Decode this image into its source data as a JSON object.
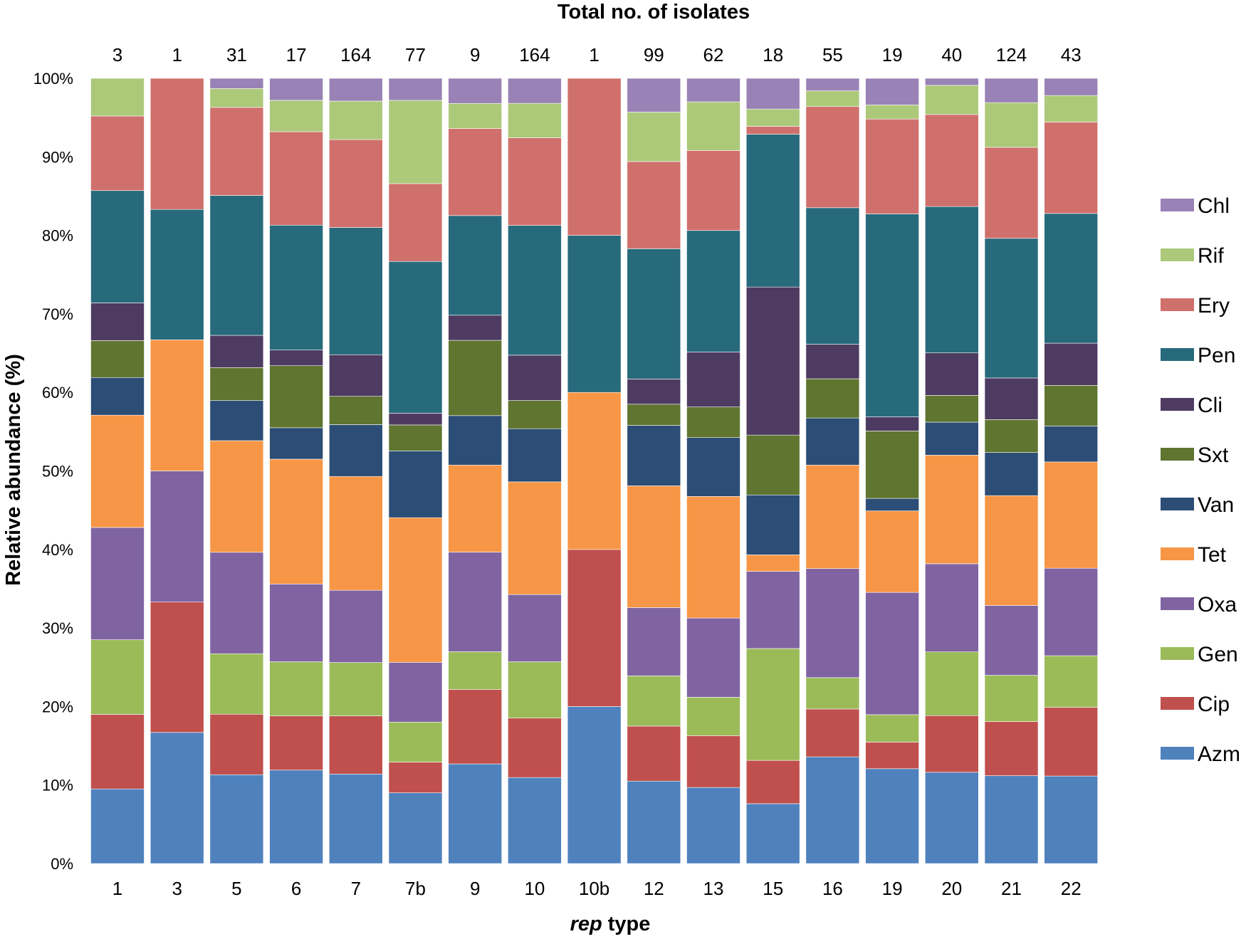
{
  "chart_data": {
    "type": "bar",
    "stacked": true,
    "normalized": true,
    "top_title": "Total no. of isolates",
    "xlabel_italic": "rep",
    "xlabel_rest": " type",
    "ylabel": "Relative abundance (%)",
    "ylim": [
      0,
      100
    ],
    "yticks": [
      "0%",
      "10%",
      "20%",
      "30%",
      "40%",
      "50%",
      "60%",
      "70%",
      "80%",
      "90%",
      "100%"
    ],
    "categories": [
      "1",
      "3",
      "5",
      "6",
      "7",
      "7b",
      "9",
      "10",
      "10b",
      "12",
      "13",
      "15",
      "16",
      "19",
      "20",
      "21",
      "22"
    ],
    "totals": [
      "3",
      "1",
      "31",
      "17",
      "164",
      "77",
      "9",
      "164",
      "1",
      "99",
      "62",
      "18",
      "55",
      "19",
      "40",
      "124",
      "43"
    ],
    "legend_position": "right",
    "series": [
      {
        "name": "Azm",
        "color": "#4f81bd",
        "values": [
          9.5,
          16.7,
          11.3,
          11.9,
          11.4,
          9.0,
          12.7,
          11.0,
          20.0,
          10.5,
          9.7,
          7.6,
          13.6,
          12.1,
          11.6,
          11.2,
          11.2
        ]
      },
      {
        "name": "Cip",
        "color": "#c0504d",
        "values": [
          9.5,
          16.6,
          7.7,
          6.9,
          7.4,
          3.9,
          9.5,
          7.6,
          20.0,
          7.0,
          6.6,
          5.5,
          6.1,
          3.4,
          7.2,
          6.9,
          8.8
        ]
      },
      {
        "name": "Gen",
        "color": "#9bbb59",
        "values": [
          9.5,
          0,
          7.7,
          6.9,
          6.8,
          5.1,
          4.8,
          7.2,
          0,
          6.4,
          4.9,
          14.2,
          4.0,
          3.5,
          8.1,
          5.9,
          6.6
        ]
      },
      {
        "name": "Oxa",
        "color": "#8064a2",
        "values": [
          14.3,
          16.7,
          12.9,
          9.9,
          9.2,
          7.6,
          12.7,
          8.6,
          0,
          8.7,
          10.1,
          9.8,
          13.9,
          15.6,
          11.2,
          8.9,
          11.2
        ]
      },
      {
        "name": "Tet",
        "color": "#f79646",
        "values": [
          14.3,
          16.7,
          14.2,
          15.9,
          14.5,
          18.4,
          11.1,
          14.4,
          20.0,
          15.5,
          15.5,
          2.1,
          13.2,
          10.4,
          13.8,
          14.0,
          13.6
        ]
      },
      {
        "name": "Van",
        "color": "#2c4d75",
        "values": [
          4.8,
          0,
          5.1,
          4.0,
          6.6,
          8.5,
          6.3,
          6.8,
          0,
          7.7,
          7.5,
          7.6,
          6.0,
          1.6,
          4.2,
          5.5,
          4.6
        ]
      },
      {
        "name": "Sxt",
        "color": "#5f7530",
        "values": [
          4.7,
          0,
          4.2,
          7.9,
          3.6,
          3.3,
          9.6,
          3.6,
          0,
          2.7,
          3.9,
          7.6,
          5.0,
          8.6,
          3.4,
          4.2,
          5.2
        ]
      },
      {
        "name": "Cli",
        "color": "#4e3b62",
        "values": [
          4.8,
          0,
          4.1,
          2.0,
          5.3,
          1.5,
          3.2,
          5.8,
          0,
          3.2,
          7.0,
          18.8,
          4.4,
          1.8,
          5.4,
          5.3,
          5.4
        ]
      },
      {
        "name": "Pen",
        "color": "#276a7c",
        "values": [
          14.3,
          16.6,
          17.8,
          15.9,
          16.2,
          19.3,
          12.7,
          16.6,
          20.0,
          16.6,
          15.5,
          19.4,
          17.4,
          25.9,
          18.6,
          17.8,
          16.6
        ]
      },
      {
        "name": "Ery",
        "color": "#d0706c",
        "values": [
          9.5,
          16.7,
          11.2,
          11.9,
          11.2,
          9.9,
          11.1,
          11.2,
          20.0,
          11.1,
          10.2,
          1.0,
          12.9,
          12.1,
          11.7,
          11.6,
          11.7
        ]
      },
      {
        "name": "Rif",
        "color": "#acc97a",
        "values": [
          4.8,
          0,
          2.4,
          4.0,
          4.9,
          10.6,
          3.2,
          4.4,
          0,
          6.3,
          6.2,
          2.2,
          2.0,
          1.8,
          3.7,
          5.7,
          3.4
        ]
      },
      {
        "name": "Chl",
        "color": "#9982b5",
        "values": [
          0,
          0,
          1.3,
          2.8,
          2.9,
          2.8,
          3.2,
          3.2,
          0,
          4.3,
          3.0,
          3.9,
          1.6,
          3.4,
          0.9,
          3.1,
          2.2
        ]
      }
    ]
  }
}
